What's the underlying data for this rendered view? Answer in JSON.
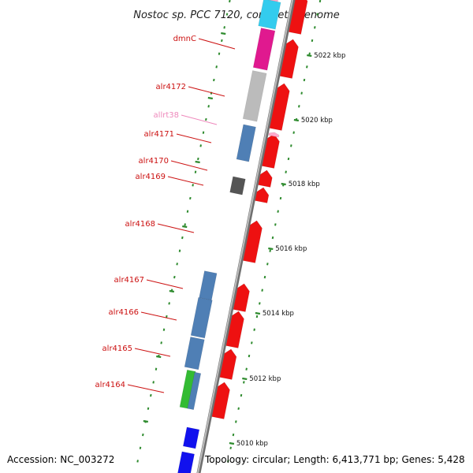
{
  "title": "Nostoc sp. PCC 7120, complete genome",
  "footer": {
    "accession": "Accession: NC_003272",
    "topology": "Topology: circular; Length: 6,413,771 bp; Genes: 5,428"
  },
  "colors": {
    "backbone": "#8c8c8c",
    "tick": "#2e8b2e",
    "label_red": "#cc1111",
    "label_pink": "#ee88bb",
    "cds_red": "#ee1111",
    "blue": "#4f7fb5",
    "magenta": "#e0198f",
    "cyan": "#33ccee",
    "gray": "#bbbbbb",
    "darkgray": "#555555",
    "green": "#33bb33",
    "pink": "#ffaacc",
    "deepblue": "#1111ee"
  },
  "scale_labels": [
    {
      "kbp": 5022,
      "text": "5022 kbp"
    },
    {
      "kbp": 5020,
      "text": "5020 kbp"
    },
    {
      "kbp": 5018,
      "text": "5018 kbp"
    },
    {
      "kbp": 5016,
      "text": "5016 kbp"
    },
    {
      "kbp": 5014,
      "text": "5014 kbp"
    },
    {
      "kbp": 5012,
      "text": "5012 kbp"
    },
    {
      "kbp": 5010,
      "text": "5010 kbp"
    }
  ],
  "gene_labels": [
    {
      "name": "dmnC",
      "color": "label_red"
    },
    {
      "name": "alr4172",
      "color": "label_red"
    },
    {
      "name": "allrt38",
      "color": "label_pink"
    },
    {
      "name": "alr4171",
      "color": "label_red"
    },
    {
      "name": "alr4170",
      "color": "label_red"
    },
    {
      "name": "alr4169",
      "color": "label_red"
    },
    {
      "name": "alr4168",
      "color": "label_red"
    },
    {
      "name": "alr4167",
      "color": "label_red"
    },
    {
      "name": "alr4166",
      "color": "label_red"
    },
    {
      "name": "alr4165",
      "color": "label_red"
    },
    {
      "name": "alr4164",
      "color": "label_red"
    }
  ]
}
